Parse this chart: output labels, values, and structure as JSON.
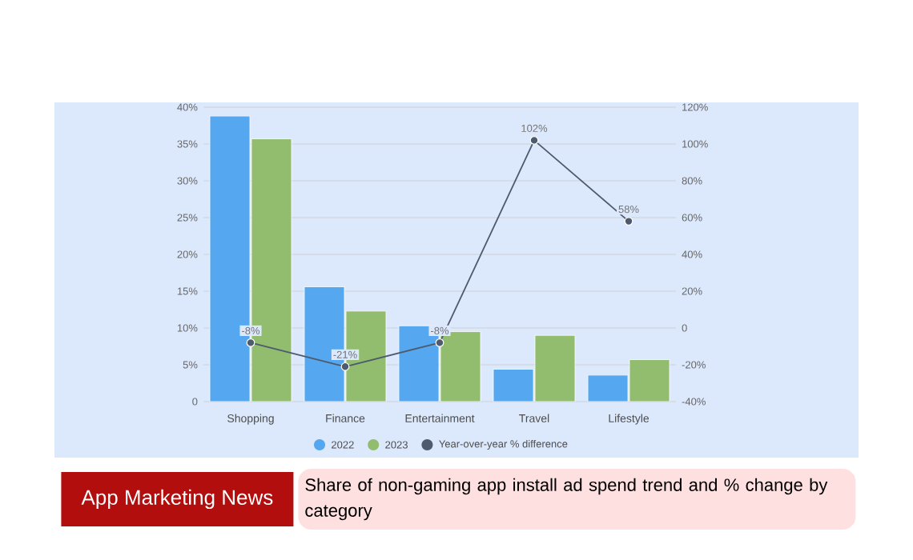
{
  "chart_data": {
    "type": "bar",
    "title": "Share of non-gaming app install ad spend trend and % change by category",
    "annotations": [
      "App Marketing News"
    ],
    "categories": [
      "Shopping",
      "Finance",
      "Entertainment",
      "Travel",
      "Lifestyle"
    ],
    "series": [
      {
        "name": "2022",
        "color": "#55a8f0",
        "values": [
          38.8,
          15.6,
          10.3,
          4.4,
          3.6
        ]
      },
      {
        "name": "2023",
        "color": "#92bd6e",
        "values": [
          35.7,
          12.3,
          9.5,
          9.0,
          5.7
        ]
      },
      {
        "name": "Year-over-year % difference",
        "type": "line",
        "axis": "y2",
        "color": "#4e5a6e",
        "marker": "circle",
        "values": [
          -8,
          -21,
          -8,
          102,
          58
        ],
        "value_labels": [
          "-8%",
          "-21%",
          "-8%",
          "102%",
          "58%"
        ]
      }
    ],
    "ylim": [
      0,
      40
    ],
    "yticks": [
      {
        "value": 0,
        "label": "0"
      },
      {
        "value": 5,
        "label": "5%"
      },
      {
        "value": 10,
        "label": "10%"
      },
      {
        "value": 15,
        "label": "15%"
      },
      {
        "value": 20,
        "label": "20%"
      },
      {
        "value": 25,
        "label": "25%"
      },
      {
        "value": 30,
        "label": "30%"
      },
      {
        "value": 35,
        "label": "35%"
      },
      {
        "value": 40,
        "label": "40%"
      }
    ],
    "y2lim": [
      -40,
      120
    ],
    "y2ticks": [
      {
        "value": -40,
        "label": "-40%"
      },
      {
        "value": -20,
        "label": "-20%"
      },
      {
        "value": 0,
        "label": "0"
      },
      {
        "value": 20,
        "label": "20%"
      },
      {
        "value": 40,
        "label": "40%"
      },
      {
        "value": 60,
        "label": "60%"
      },
      {
        "value": 80,
        "label": "80%"
      },
      {
        "value": 100,
        "label": "100%"
      },
      {
        "value": 120,
        "label": "120%"
      }
    ],
    "grid": "y",
    "legend": "bottom"
  }
}
